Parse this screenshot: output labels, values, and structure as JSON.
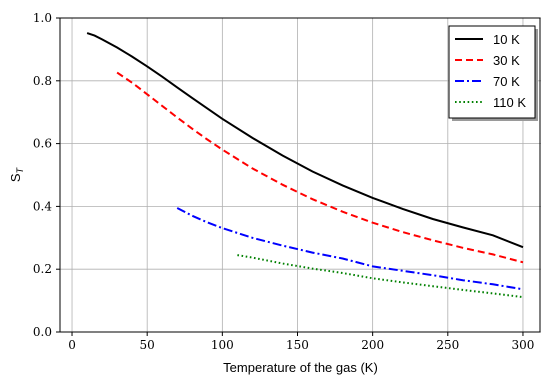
{
  "chart_data": {
    "type": "line",
    "xlabel": "Temperature of the gas (K)",
    "ylabel": "S",
    "ylabel_sub": "T",
    "xlim": [
      -8,
      312
    ],
    "ylim": [
      0.0,
      1.0
    ],
    "xticks": [
      0,
      50,
      100,
      150,
      200,
      250,
      300
    ],
    "xtick_labels": [
      "0",
      "50",
      "100",
      "150",
      "200",
      "250",
      "300"
    ],
    "yticks": [
      0.0,
      0.2,
      0.4,
      0.6,
      0.8,
      1.0
    ],
    "ytick_labels": [
      "0.0",
      "0.2",
      "0.4",
      "0.6",
      "0.8",
      "1.0"
    ],
    "grid": true,
    "legend_position": "top-right",
    "series": [
      {
        "name": "10 K",
        "color": "#000000",
        "style": "solid",
        "x": [
          10,
          15,
          20,
          30,
          40,
          50,
          60,
          70,
          80,
          90,
          100,
          120,
          140,
          160,
          180,
          200,
          220,
          240,
          260,
          280,
          300
        ],
        "y": [
          0.952,
          0.944,
          0.932,
          0.906,
          0.877,
          0.846,
          0.813,
          0.779,
          0.745,
          0.712,
          0.679,
          0.618,
          0.562,
          0.511,
          0.467,
          0.427,
          0.392,
          0.36,
          0.333,
          0.308,
          0.27
        ]
      },
      {
        "name": "30 K",
        "color": "#ff0000",
        "style": "dashed",
        "x": [
          30,
          40,
          50,
          60,
          70,
          80,
          90,
          100,
          120,
          140,
          160,
          180,
          200,
          220,
          240,
          260,
          280,
          300
        ],
        "y": [
          0.826,
          0.794,
          0.757,
          0.72,
          0.683,
          0.647,
          0.613,
          0.581,
          0.521,
          0.469,
          0.423,
          0.383,
          0.348,
          0.318,
          0.292,
          0.268,
          0.247,
          0.222
        ]
      },
      {
        "name": "70 K",
        "color": "#0000ff",
        "style": "dashdot",
        "x": [
          70,
          80,
          90,
          100,
          120,
          140,
          160,
          180,
          200,
          220,
          240,
          260,
          280,
          300
        ],
        "y": [
          0.395,
          0.37,
          0.349,
          0.331,
          0.3,
          0.275,
          0.253,
          0.234,
          0.209,
          0.195,
          0.181,
          0.165,
          0.152,
          0.136
        ]
      },
      {
        "name": "110 K",
        "color": "#008000",
        "style": "dotted",
        "x": [
          110,
          120,
          140,
          160,
          180,
          200,
          220,
          240,
          260,
          280,
          300
        ],
        "y": [
          0.245,
          0.237,
          0.218,
          0.202,
          0.188,
          0.171,
          0.158,
          0.146,
          0.134,
          0.123,
          0.111
        ]
      }
    ]
  }
}
